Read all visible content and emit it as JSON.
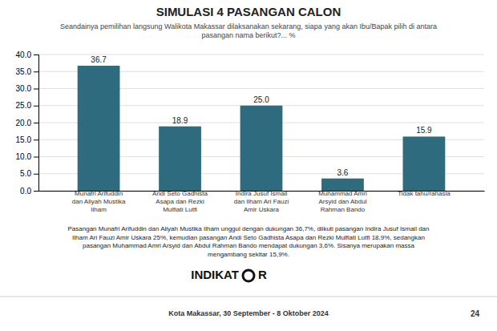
{
  "chart_data": {
    "type": "bar",
    "title": "SIMULASI 4 PASANGAN CALON",
    "subtitle": "Seandainya pemilihan langsung Walikota Makassar dilaksanakan sekarang, siapa yang akan Ibu/Bapak pilih di antara\npasangan nama berikut?... %",
    "categories": [
      "Munafri Arifuddin\ndan Aliyah Mustika\nIlham",
      "Andi Seto Gadhista\nAsapa dan Rezki\nMulfiati Lutfi",
      "Indira Jusuf Ismail\ndan Ilham Ari Fauzi\nAmir Uskara",
      "Muhammad Amri\nArsyid dan Abdul\nRahman Bando",
      "Tidak tahu/rahasia"
    ],
    "values": [
      36.7,
      18.9,
      25.0,
      3.6,
      15.9
    ],
    "value_labels": [
      "36.7",
      "18.9",
      "25.0",
      "3.6",
      "15.9"
    ],
    "data_labels": true,
    "color": "#2e6b7e",
    "ylim": [
      0,
      40
    ],
    "yticks": [
      {
        "value": 0,
        "label": "0.0"
      },
      {
        "value": 5,
        "label": "5.0"
      },
      {
        "value": 10,
        "label": "10.0"
      },
      {
        "value": 15,
        "label": "15.0"
      },
      {
        "value": 20,
        "label": "20.0"
      },
      {
        "value": 25,
        "label": "25.0"
      },
      {
        "value": 30,
        "label": "30.0"
      },
      {
        "value": 35,
        "label": "35.0"
      },
      {
        "value": 40,
        "label": "40.0"
      }
    ],
    "grid": true,
    "annotations": [
      "Pasangan Munafri Arifuddin dan Aliyah Mustika Ilham unggul dengan dukungan 36,7%, diikuti pasangan Indira Jusuf Ismail dan\nIlham Ari Fauzi Amir Uskara 25%, kemudian pasangan Andi Seto Gadhista Asapa dan Rezki Mulfiati Lutfi 18,9%, sedangkan\npasangan Muhammad Amri Arsyid dan Abdul Rahman Bando mendapat dukungan 3,6%. Sisanya merupakan massa\nmengambang sekitar 15,9%.",
      "INDIKAT",
      "R",
      "Kota Makassar, 30 September - 8 Oktober 2024",
      "24"
    ]
  }
}
